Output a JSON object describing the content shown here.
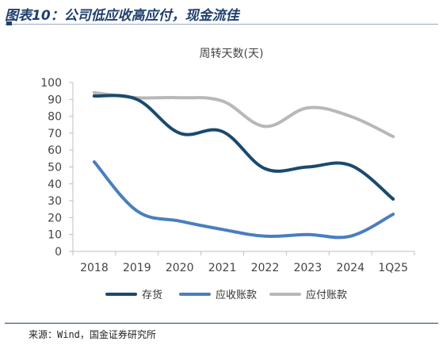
{
  "figure_title": "图表10：公司低应收高应付，现金流佳",
  "source_note": "来源：Wind，国金证券研究所",
  "chart_data": {
    "type": "line",
    "title": "周转天数(天)",
    "categories": [
      "2018",
      "2019",
      "2020",
      "2021",
      "2022",
      "2023",
      "2024",
      "1Q25"
    ],
    "series": [
      {
        "name": "存货",
        "color": "#1a4a6e",
        "values": [
          92,
          90,
          70,
          71,
          49,
          50,
          51,
          31
        ]
      },
      {
        "name": "应收账款",
        "color": "#4a7ebf",
        "values": [
          53,
          24,
          18,
          13,
          9,
          10,
          9,
          22
        ]
      },
      {
        "name": "应付账款",
        "color": "#b8b8b8",
        "values": [
          94,
          91,
          91,
          89,
          74,
          85,
          80,
          68
        ]
      }
    ],
    "ylim": [
      0,
      100
    ],
    "yticks": [
      0,
      10,
      20,
      30,
      40,
      50,
      60,
      70,
      80,
      90,
      100
    ],
    "grid": false,
    "legend_position": "bottom"
  }
}
